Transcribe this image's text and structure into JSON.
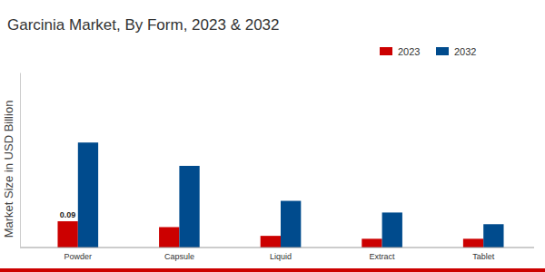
{
  "chart_data": {
    "type": "bar",
    "title": "Garcinia Market, By Form, 2023 & 2032",
    "y_label": "Market Size in USD Billion",
    "categories": [
      "Powder",
      "Capsule",
      "Liquid",
      "Extract",
      "Tablet"
    ],
    "series": [
      {
        "name": "2023",
        "color": "#cc0000",
        "values": [
          0.09,
          0.07,
          0.04,
          0.03,
          0.03
        ],
        "value_labels": [
          "0.09",
          null,
          null,
          null,
          null
        ]
      },
      {
        "name": "2032",
        "color": "#004b8d",
        "values": [
          0.36,
          0.28,
          0.16,
          0.12,
          0.08
        ]
      }
    ],
    "ylim": [
      0,
      0.6
    ],
    "tick_labels": "x",
    "legend": "top-right",
    "grid": false
  }
}
